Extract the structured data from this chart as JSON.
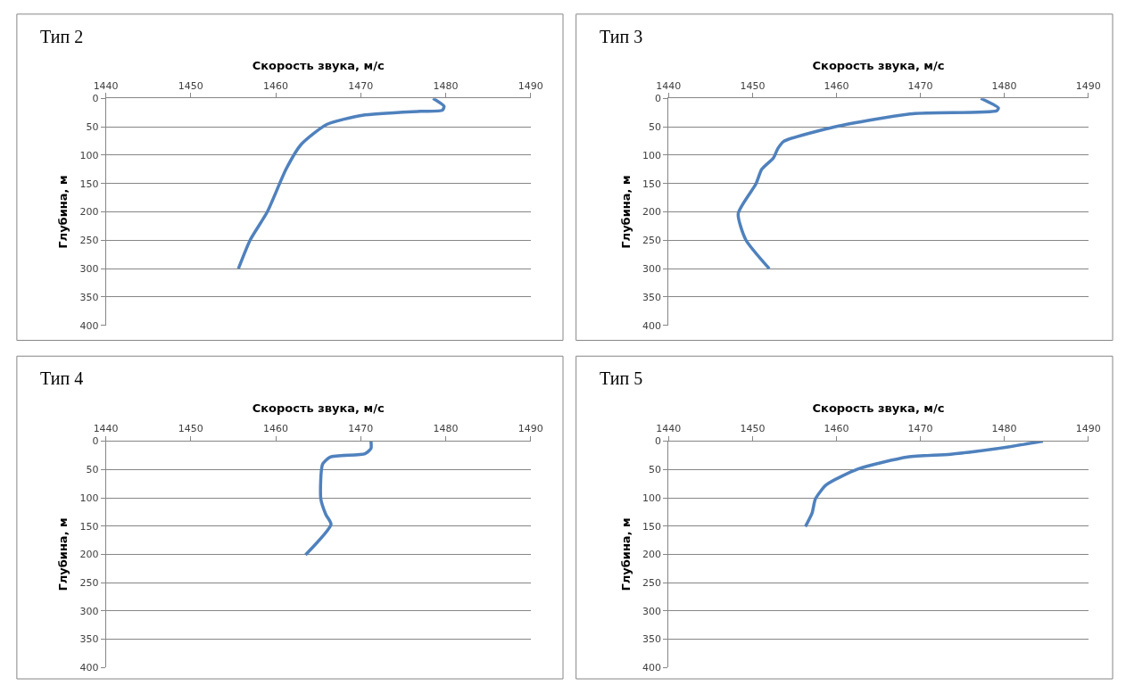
{
  "chart_data": [
    {
      "type": "line",
      "title": "Тип 2",
      "xlabel": "Скорость звука, м/с",
      "ylabel": "Глубина, м",
      "xlim": [
        1440,
        1490
      ],
      "xticks": [
        1440,
        1450,
        1460,
        1470,
        1480,
        1490
      ],
      "ylim": [
        400,
        0
      ],
      "yticks": [
        0,
        50,
        100,
        150,
        200,
        250,
        300,
        350,
        400
      ],
      "grid": "y",
      "marker": "none",
      "line_style": "solid",
      "series": [
        {
          "color": "#4f81bd",
          "x": [
            1478.5,
            1479.8,
            1479.6,
            1477,
            1470.2,
            1466,
            1463,
            1461.2,
            1459,
            1457,
            1455.6
          ],
          "values": [
            0,
            14,
            21,
            23,
            30,
            46,
            81,
            125,
            200,
            249,
            300
          ]
        }
      ]
    },
    {
      "type": "line",
      "title": "Тип 3",
      "xlabel": "Скорость звука, м/с",
      "ylabel": "Глубина, м",
      "xlim": [
        1440,
        1490
      ],
      "xticks": [
        1440,
        1450,
        1460,
        1470,
        1480,
        1490
      ],
      "ylim": [
        400,
        0
      ],
      "yticks": [
        0,
        50,
        100,
        150,
        200,
        250,
        300,
        350,
        400
      ],
      "grid": "y",
      "marker": "none",
      "line_style": "solid",
      "series": [
        {
          "color": "#4f81bd",
          "x": [
            1477.2,
            1479.3,
            1479.1,
            1469.1,
            1459.9,
            1453.7,
            1453,
            1452.5,
            1451.1,
            1450.4,
            1448.3,
            1449.2,
            1452
          ],
          "values": [
            0,
            17,
            22,
            27,
            50,
            76,
            89,
            105,
            125,
            151,
            203,
            249,
            300
          ]
        }
      ]
    },
    {
      "type": "line",
      "title": "Тип 4",
      "xlabel": "Скорость звука, м/с",
      "ylabel": "Глубина, м",
      "xlim": [
        1440,
        1490
      ],
      "xticks": [
        1440,
        1450,
        1460,
        1470,
        1480,
        1490
      ],
      "ylim": [
        400,
        0
      ],
      "yticks": [
        0,
        50,
        100,
        150,
        200,
        250,
        300,
        350,
        400
      ],
      "grid": "y",
      "marker": "none",
      "line_style": "solid",
      "series": [
        {
          "color": "#4f81bd",
          "x": [
            1471.2,
            1471.2,
            1470.5,
            1466.4,
            1465.5,
            1465.3,
            1465.9,
            1466.5,
            1463.5
          ],
          "values": [
            0,
            13,
            22,
            28,
            41,
            102,
            130,
            147,
            201
          ]
        }
      ]
    },
    {
      "type": "line",
      "title": "Тип 5",
      "xlabel": "Скорость звука, м/с",
      "ylabel": "Глубина, м",
      "xlim": [
        1440,
        1490
      ],
      "xticks": [
        1440,
        1450,
        1460,
        1470,
        1480,
        1490
      ],
      "ylim": [
        400,
        0
      ],
      "yticks": [
        0,
        50,
        100,
        150,
        200,
        250,
        300,
        350,
        400
      ],
      "grid": "y",
      "marker": "none",
      "line_style": "solid",
      "series": [
        {
          "color": "#4f81bd",
          "x": [
            1484.6,
            1480.5,
            1473.6,
            1468.5,
            1462.6,
            1458.8,
            1457.5,
            1457.1,
            1456.3
          ],
          "values": [
            0,
            10,
            23,
            28,
            49,
            77,
            102,
            127,
            151
          ]
        }
      ]
    }
  ]
}
